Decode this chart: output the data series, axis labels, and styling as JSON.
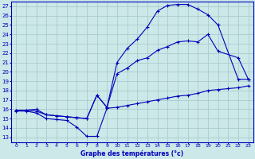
{
  "title": "Graphe des températures (°c)",
  "bg_color": "#cce8e8",
  "grid_color": "#aacccc",
  "line_color": "#0000bb",
  "xlim": [
    -0.5,
    23.5
  ],
  "ylim": [
    12.5,
    27.5
  ],
  "xticks": [
    0,
    1,
    2,
    3,
    4,
    5,
    6,
    7,
    8,
    9,
    10,
    11,
    12,
    13,
    14,
    15,
    16,
    17,
    18,
    19,
    20,
    21,
    22,
    23
  ],
  "yticks": [
    13,
    14,
    15,
    16,
    17,
    18,
    19,
    20,
    21,
    22,
    23,
    24,
    25,
    26,
    27
  ],
  "curve1_x": [
    0,
    1,
    2,
    3,
    4,
    5,
    6,
    7,
    8,
    9,
    10,
    11,
    12,
    13,
    14,
    15,
    16,
    17,
    18,
    19,
    20,
    21,
    22,
    23
  ],
  "curve1_y": [
    15.8,
    15.8,
    15.6,
    15.0,
    14.9,
    14.8,
    14.1,
    13.1,
    13.1,
    16.1,
    16.2,
    16.4,
    16.6,
    16.8,
    17.0,
    17.2,
    17.4,
    17.5,
    17.7,
    18.0,
    18.1,
    18.2,
    18.3,
    18.5
  ],
  "curve2_x": [
    0,
    1,
    2,
    3,
    4,
    5,
    6,
    7,
    8,
    9,
    10,
    11,
    12,
    13,
    14,
    15,
    16,
    17,
    18,
    19,
    20,
    22,
    23
  ],
  "curve2_y": [
    15.9,
    15.9,
    15.8,
    15.4,
    15.3,
    15.2,
    15.1,
    15.0,
    17.5,
    16.2,
    19.8,
    20.4,
    21.2,
    21.5,
    22.3,
    22.7,
    23.2,
    23.3,
    23.2,
    24.0,
    22.2,
    21.5,
    19.2
  ],
  "curve3_x": [
    0,
    1,
    2,
    3,
    4,
    5,
    6,
    7,
    8,
    9,
    10,
    11,
    12,
    13,
    14,
    15,
    16,
    17,
    18,
    19,
    20,
    22,
    23
  ],
  "curve3_y": [
    15.9,
    15.9,
    16.0,
    15.4,
    15.3,
    15.2,
    15.1,
    15.0,
    17.5,
    16.2,
    21.0,
    22.5,
    23.5,
    24.8,
    26.5,
    27.1,
    27.2,
    27.2,
    26.7,
    26.1,
    25.0,
    19.2,
    19.2
  ]
}
